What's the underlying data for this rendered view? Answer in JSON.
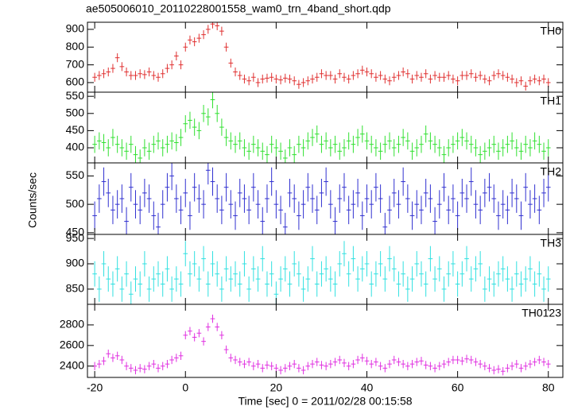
{
  "chart_data": {
    "type": "line",
    "title": "ae505006010_20110228001558_wam0_trn_4band_short.qdp",
    "x_label": "Time [sec] 0 = 2011/02/28 00:15:58",
    "y_label": "Counts/sec",
    "xlim": [
      -21.6,
      83.2
    ],
    "xticks": [
      -20,
      0,
      20,
      40,
      60,
      80
    ],
    "x": [
      -20,
      -19,
      -18,
      -17,
      -16,
      -15,
      -14,
      -13,
      -12,
      -11,
      -10,
      -9,
      -8,
      -7,
      -6,
      -5,
      -4,
      -3,
      -2,
      -1,
      0,
      1,
      2,
      3,
      4,
      5,
      6,
      7,
      8,
      9,
      10,
      11,
      12,
      13,
      14,
      15,
      16,
      17,
      18,
      19,
      20,
      21,
      22,
      23,
      24,
      25,
      26,
      27,
      28,
      29,
      30,
      31,
      32,
      33,
      34,
      35,
      36,
      37,
      38,
      39,
      40,
      41,
      42,
      43,
      44,
      45,
      46,
      47,
      48,
      49,
      50,
      51,
      52,
      53,
      54,
      55,
      56,
      57,
      58,
      59,
      60,
      61,
      62,
      63,
      64,
      65,
      66,
      67,
      68,
      69,
      70,
      71,
      72,
      73,
      74,
      75,
      76,
      77,
      78,
      79,
      80
    ],
    "series": [
      {
        "name": "TH0",
        "color": "#e03030",
        "error": 25,
        "ylim": [
          546,
          940
        ],
        "yticks": [
          600,
          700,
          800,
          900
        ],
        "values": [
          630,
          640,
          650,
          660,
          680,
          740,
          690,
          660,
          640,
          640,
          650,
          645,
          660,
          640,
          630,
          650,
          680,
          700,
          750,
          700,
          800,
          840,
          830,
          850,
          870,
          900,
          930,
          920,
          890,
          800,
          710,
          660,
          640,
          620,
          610,
          630,
          600,
          620,
          625,
          630,
          620,
          615,
          625,
          620,
          610,
          590,
          600,
          610,
          620,
          630,
          650,
          640,
          640,
          620,
          650,
          630,
          620,
          640,
          650,
          670,
          660,
          650,
          630,
          640,
          620,
          610,
          630,
          640,
          660,
          650,
          620,
          640,
          630,
          650,
          620,
          640,
          630,
          630,
          640,
          620,
          610,
          640,
          640,
          650,
          630,
          640,
          620,
          610,
          640,
          650,
          640,
          630,
          620,
          600,
          610,
          580,
          610,
          620,
          610,
          620,
          600
        ]
      },
      {
        "name": "TH1",
        "color": "#30e030",
        "error": 25,
        "ylim": [
          356,
          562
        ],
        "yticks": [
          400,
          450,
          500,
          550
        ],
        "values": [
          410,
          420,
          415,
          400,
          430,
          410,
          400,
          390,
          410,
          380,
          370,
          400,
          390,
          410,
          420,
          400,
          410,
          420,
          415,
          430,
          470,
          480,
          460,
          450,
          500,
          490,
          540,
          500,
          460,
          430,
          420,
          410,
          420,
          400,
          390,
          410,
          400,
          390,
          380,
          410,
          400,
          390,
          370,
          400,
          380,
          410,
          400,
          420,
          430,
          440,
          410,
          420,
          400,
          410,
          390,
          400,
          420,
          410,
          430,
          440,
          420,
          410,
          400,
          390,
          410,
          420,
          400,
          410,
          430,
          420,
          390,
          400,
          410,
          440,
          420,
          410,
          400,
          380,
          400,
          410,
          420,
          430,
          420,
          410,
          400,
          380,
          390,
          400,
          410,
          390,
          400,
          410,
          420,
          400,
          390,
          410,
          400,
          420,
          410,
          390,
          400
        ]
      },
      {
        "name": "TH2",
        "color": "#3030d0",
        "error": 25,
        "ylim": [
          447,
          573
        ],
        "yticks": [
          450,
          500,
          550
        ],
        "values": [
          480,
          510,
          540,
          520,
          490,
          500,
          510,
          470,
          530,
          500,
          490,
          520,
          510,
          480,
          460,
          500,
          530,
          550,
          510,
          490,
          520,
          480,
          530,
          510,
          500,
          560,
          540,
          510,
          490,
          530,
          500,
          480,
          520,
          510,
          490,
          530,
          500,
          470,
          510,
          540,
          500,
          490,
          460,
          520,
          510,
          480,
          500,
          530,
          510,
          490,
          520,
          540,
          500,
          470,
          510,
          530,
          490,
          500,
          520,
          480,
          510,
          500,
          530,
          510,
          460,
          490,
          520,
          500,
          540,
          510,
          480,
          500,
          490,
          520,
          510,
          470,
          500,
          530,
          490,
          510,
          480,
          520,
          510,
          540,
          500,
          490,
          520,
          530,
          510,
          480,
          500,
          490,
          520,
          510,
          480,
          530,
          500,
          510,
          490,
          520,
          530
        ]
      },
      {
        "name": "TH3",
        "color": "#30e0e0",
        "error": 25,
        "ylim": [
          820,
          958
        ],
        "yticks": [
          850,
          900,
          950
        ],
        "values": [
          880,
          850,
          900,
          870,
          860,
          890,
          850,
          880,
          840,
          870,
          860,
          900,
          850,
          870,
          880,
          860,
          890,
          850,
          870,
          860,
          920,
          880,
          900,
          870,
          910,
          860,
          900,
          880,
          850,
          890,
          870,
          880,
          860,
          900,
          850,
          890,
          870,
          910,
          860,
          880,
          840,
          870,
          890,
          860,
          900,
          880,
          850,
          870,
          910,
          860,
          880,
          890,
          870,
          860,
          900,
          920,
          880,
          910,
          870,
          890,
          900,
          860,
          880,
          900,
          870,
          910,
          890,
          860,
          880,
          850,
          870,
          900,
          880,
          860,
          910,
          870,
          890,
          850,
          880,
          900,
          860,
          880,
          910,
          870,
          890,
          900,
          850,
          870,
          860,
          880,
          890,
          870,
          850,
          880,
          860,
          870,
          890,
          860,
          880,
          850,
          870
        ]
      },
      {
        "name": "TH0123",
        "color": "#e030e0",
        "error": 40,
        "ylim": [
          2290,
          3000
        ],
        "yticks": [
          2400,
          2600,
          2800
        ],
        "values": [
          2400,
          2420,
          2450,
          2520,
          2480,
          2500,
          2460,
          2400,
          2380,
          2360,
          2380,
          2370,
          2400,
          2420,
          2380,
          2400,
          2420,
          2460,
          2480,
          2500,
          2700,
          2740,
          2680,
          2720,
          2640,
          2780,
          2860,
          2780,
          2700,
          2560,
          2480,
          2460,
          2440,
          2420,
          2440,
          2400,
          2420,
          2380,
          2410,
          2400,
          2380,
          2360,
          2380,
          2400,
          2420,
          2380,
          2360,
          2400,
          2420,
          2440,
          2410,
          2400,
          2420,
          2440,
          2460,
          2430,
          2400,
          2420,
          2460,
          2480,
          2450,
          2420,
          2440,
          2400,
          2380,
          2420,
          2460,
          2440,
          2420,
          2400,
          2420,
          2440,
          2450,
          2410,
          2400,
          2380,
          2400,
          2420,
          2440,
          2460,
          2460,
          2450,
          2470,
          2460,
          2440,
          2420,
          2400,
          2380,
          2360,
          2370,
          2350,
          2380,
          2400,
          2420,
          2380,
          2400,
          2420,
          2440,
          2460,
          2440,
          2420
        ]
      }
    ]
  }
}
